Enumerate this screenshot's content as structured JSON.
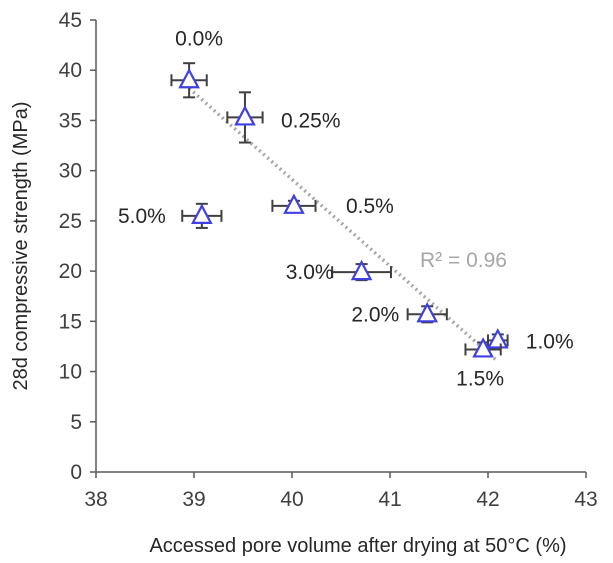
{
  "chart_data": {
    "type": "scatter",
    "title": "",
    "xlabel": "Accessed pore volume after drying at 50°C (%)",
    "ylabel": "28d compressive strength (MPa)",
    "xlim": [
      38,
      43
    ],
    "ylim": [
      0,
      45
    ],
    "x_ticks": [
      38,
      39,
      40,
      41,
      42,
      43
    ],
    "y_ticks": [
      0,
      5,
      10,
      15,
      20,
      25,
      30,
      35,
      40,
      45
    ],
    "grid": false,
    "marker": "triangle",
    "marker_color": "#4040e0",
    "error_bar_color": "#404040",
    "points": [
      {
        "label": "0.0%",
        "x": 38.95,
        "y": 39.0,
        "x_err": 0.18,
        "y_err": 1.7
      },
      {
        "label": "0.25%",
        "x": 39.52,
        "y": 35.3,
        "x_err": 0.18,
        "y_err": 2.5
      },
      {
        "label": "0.5%",
        "x": 40.02,
        "y": 26.5,
        "x_err": 0.22,
        "y_err": 0.5
      },
      {
        "label": "5.0%",
        "x": 39.08,
        "y": 25.5,
        "x_err": 0.2,
        "y_err": 1.2
      },
      {
        "label": "3.0%",
        "x": 40.71,
        "y": 19.9,
        "x_err": 0.3,
        "y_err": 0.8
      },
      {
        "label": "2.0%",
        "x": 41.38,
        "y": 15.7,
        "x_err": 0.2,
        "y_err": 0.8
      },
      {
        "label": "1.0%",
        "x": 42.1,
        "y": 13.1,
        "x_err": 0.1,
        "y_err": 0.6
      },
      {
        "label": "1.5%",
        "x": 41.95,
        "y": 12.2,
        "x_err": 0.18,
        "y_err": 0.7
      }
    ],
    "trendline": {
      "type": "linear",
      "style": "dotted",
      "color": "#a6a6a6",
      "x": [
        38.95,
        42.1
      ],
      "y": [
        38.2,
        11.0
      ],
      "r2_text": "R² = 0.96"
    }
  }
}
